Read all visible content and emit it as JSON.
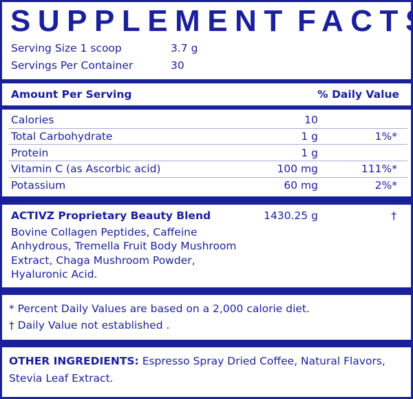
{
  "title": {
    "word1": "SUPPLEMENT",
    "word2": "FACTS"
  },
  "serving": {
    "size_label": "Serving Size 1 scoop",
    "size_value": "3.7 g",
    "per_container_label": "Servings Per Container",
    "per_container_value": "30"
  },
  "header": {
    "amount": "Amount Per Serving",
    "dv": "% Daily Value"
  },
  "nutrients": [
    {
      "name": "Calories",
      "amount": "10",
      "dv": ""
    },
    {
      "name": "Total Carbohydrate",
      "amount": "1 g",
      "dv": "1%*"
    },
    {
      "name": "Protein",
      "amount": "1 g",
      "dv": ""
    },
    {
      "name": "Vitamin C (as Ascorbic acid)",
      "amount": "100 mg",
      "dv": "111%*"
    },
    {
      "name": "Potassium",
      "amount": "60 mg",
      "dv": "2%*"
    }
  ],
  "blend": {
    "name": "ACTIVZ Proprietary Beauty Blend",
    "amount": "1430.25 g",
    "dv": "†",
    "lines": [
      "Bovine Collagen Peptides, Caffeine",
      "Anhydrous, Tremella Fruit Body Mushroom",
      "Extract, Chaga Mushroom Powder,",
      "Hyaluronic Acid."
    ]
  },
  "footnotes": [
    "* Percent Daily Values are based on a 2,000 calorie diet.",
    "† Daily Value not established ."
  ],
  "other": {
    "label": "OTHER INGREDIENTS:",
    "line1": " Espresso Spray Dried Coffee, Natural Flavors,",
    "line2": "Stevia Leaf Extract."
  },
  "colors": {
    "ink": "#1a1f9c",
    "rule": "#a9acd6"
  }
}
